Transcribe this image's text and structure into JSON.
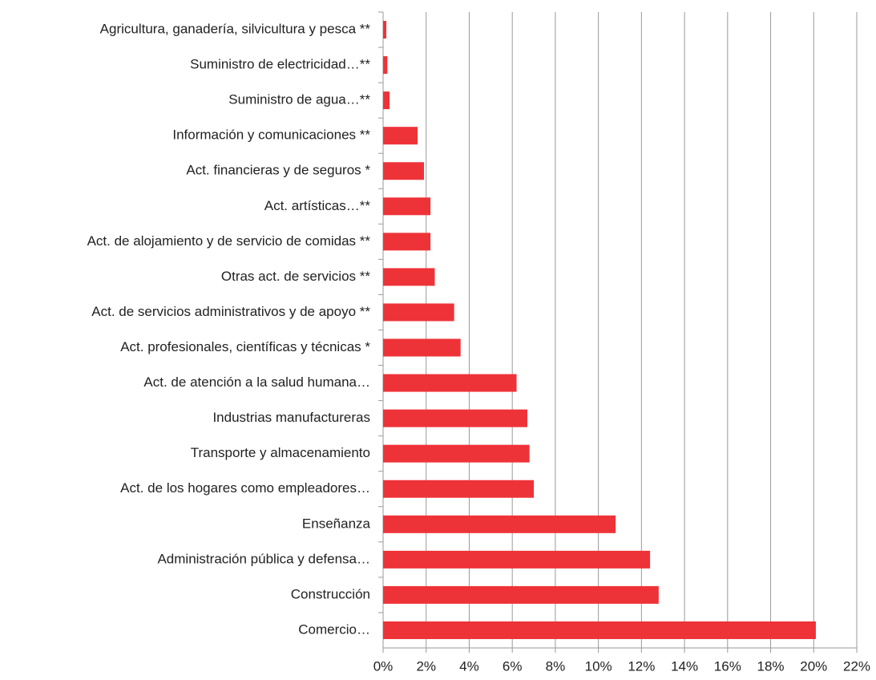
{
  "chart_data": {
    "type": "bar",
    "orientation": "horizontal",
    "categories": [
      "Agricultura, ganadería, silvicultura y pesca **",
      "Suministro de electricidad…**",
      "Suministro de agua…**",
      "Información y comunicaciones **",
      "Act. financieras y de seguros *",
      "Act. artísticas…**",
      "Act. de alojamiento y de servicio de comidas **",
      "Otras act. de servicios **",
      "Act. de servicios administrativos y de apoyo **",
      "Act. profesionales, científicas y técnicas *",
      "Act. de atención a la salud humana…",
      "Industrias manufactureras",
      "Transporte y almacenamiento",
      "Act. de los hogares como empleadores…",
      "Enseñanza",
      "Administración pública y defensa…",
      "Construcción",
      "Comercio…"
    ],
    "values": [
      0.15,
      0.2,
      0.3,
      1.6,
      1.9,
      2.2,
      2.2,
      2.4,
      3.3,
      3.6,
      6.2,
      6.7,
      6.8,
      7.0,
      10.8,
      12.4,
      12.8,
      20.1
    ],
    "color": "#ee3338",
    "xlim": [
      0,
      22
    ],
    "xticks": [
      {
        "value": 0,
        "label": "0%"
      },
      {
        "value": 2,
        "label": "2%"
      },
      {
        "value": 4,
        "label": "4%"
      },
      {
        "value": 6,
        "label": "6%"
      },
      {
        "value": 8,
        "label": "8%"
      },
      {
        "value": 10,
        "label": "10%"
      },
      {
        "value": 12,
        "label": "12%"
      },
      {
        "value": 14,
        "label": "14%"
      },
      {
        "value": 16,
        "label": "16%"
      },
      {
        "value": 18,
        "label": "18%"
      },
      {
        "value": 20,
        "label": "20%"
      },
      {
        "value": 22,
        "label": "22%"
      }
    ],
    "grid": true
  }
}
